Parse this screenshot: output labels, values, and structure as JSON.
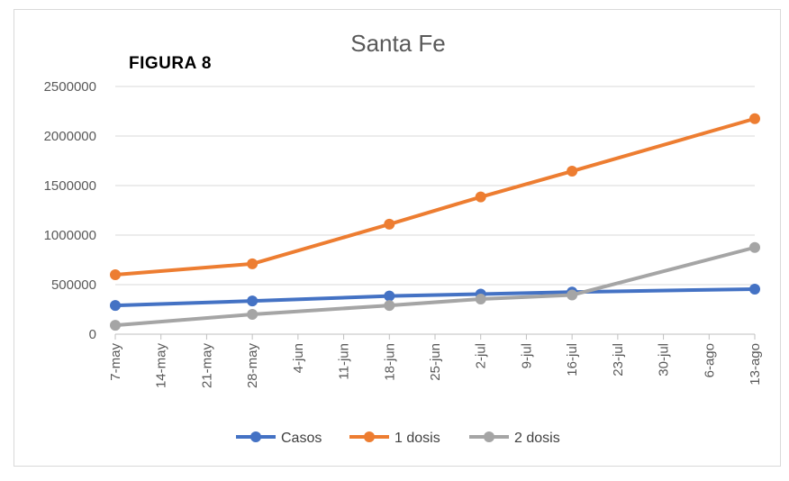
{
  "figure_label": "FIGURA 8",
  "chart_data": {
    "type": "line",
    "title": "Santa Fe",
    "xlabel": "",
    "ylabel": "",
    "ylim": [
      0,
      2500000
    ],
    "yticks": [
      0,
      500000,
      1000000,
      1500000,
      2000000,
      2500000
    ],
    "categories": [
      "7-may",
      "14-may",
      "21-may",
      "28-may",
      "4-jun",
      "11-jun",
      "18-jun",
      "25-jun",
      "2-jul",
      "9-jul",
      "16-jul",
      "23-jul",
      "30-jul",
      "6-ago",
      "13-ago"
    ],
    "grid": true,
    "legend_position": "bottom",
    "series": [
      {
        "name": "Casos",
        "color": "#4472c4",
        "points": [
          {
            "x": "7-may",
            "y": 290000
          },
          {
            "x": "28-may",
            "y": 335000
          },
          {
            "x": "18-jun",
            "y": 385000
          },
          {
            "x": "2-jul",
            "y": 405000
          },
          {
            "x": "16-jul",
            "y": 425000
          },
          {
            "x": "13-ago",
            "y": 455000
          }
        ]
      },
      {
        "name": "1 dosis",
        "color": "#ed7d31",
        "points": [
          {
            "x": "7-may",
            "y": 600000
          },
          {
            "x": "28-may",
            "y": 710000
          },
          {
            "x": "18-jun",
            "y": 1110000
          },
          {
            "x": "2-jul",
            "y": 1385000
          },
          {
            "x": "16-jul",
            "y": 1645000
          },
          {
            "x": "13-ago",
            "y": 2175000
          }
        ]
      },
      {
        "name": "2 dosis",
        "color": "#a5a5a5",
        "points": [
          {
            "x": "7-may",
            "y": 90000
          },
          {
            "x": "28-may",
            "y": 200000
          },
          {
            "x": "18-jun",
            "y": 290000
          },
          {
            "x": "2-jul",
            "y": 355000
          },
          {
            "x": "16-jul",
            "y": 395000
          },
          {
            "x": "13-ago",
            "y": 875000
          }
        ]
      }
    ]
  }
}
